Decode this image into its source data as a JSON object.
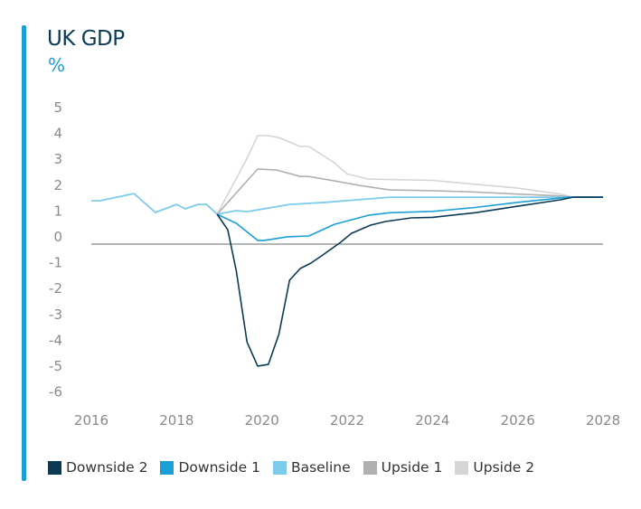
{
  "title": "UK GDP",
  "unit": "%",
  "chart_data": {
    "type": "line",
    "title": "UK GDP",
    "ylabel": "%",
    "xlim": [
      2016,
      2028
    ],
    "ylim": [
      -6,
      5
    ],
    "x_ticks": [
      "2016",
      "2018",
      "2020",
      "2022",
      "2024",
      "2026",
      "2028"
    ],
    "y_ticks": [
      "5",
      "4",
      "3",
      "2",
      "1",
      "0",
      "-1",
      "-2",
      "-3",
      "-4",
      "-5",
      "-6"
    ],
    "grid": false,
    "legend": "bottom",
    "series": [
      {
        "name": "Downside 2",
        "color": "#0b3a55",
        "points": [
          [
            2018.95,
            0.84
          ],
          [
            2019.2,
            0.24
          ],
          [
            2019.4,
            -1.36
          ],
          [
            2019.65,
            -4.1
          ],
          [
            2019.9,
            -5.03
          ],
          [
            2020.15,
            -4.97
          ],
          [
            2020.4,
            -3.8
          ],
          [
            2020.65,
            -1.71
          ],
          [
            2020.9,
            -1.26
          ],
          [
            2021.15,
            -1.05
          ],
          [
            2021.4,
            -0.77
          ],
          [
            2021.85,
            -0.24
          ],
          [
            2022.1,
            0.1
          ],
          [
            2022.55,
            0.42
          ],
          [
            2022.9,
            0.56
          ],
          [
            2023.5,
            0.7
          ],
          [
            2024,
            0.72
          ],
          [
            2025,
            0.9
          ],
          [
            2026,
            1.15
          ],
          [
            2027,
            1.4
          ],
          [
            2027.3,
            1.5
          ],
          [
            2028,
            1.5
          ]
        ]
      },
      {
        "name": "Downside 1",
        "color": "#1a9fd6",
        "points": [
          [
            2018.95,
            0.84
          ],
          [
            2019.4,
            0.49
          ],
          [
            2019.9,
            -0.17
          ],
          [
            2020.05,
            -0.17
          ],
          [
            2020.6,
            -0.03
          ],
          [
            2021.1,
            0
          ],
          [
            2021.7,
            0.45
          ],
          [
            2022.5,
            0.8
          ],
          [
            2023,
            0.9
          ],
          [
            2024,
            0.95
          ],
          [
            2025,
            1.1
          ],
          [
            2026,
            1.3
          ],
          [
            2027.2,
            1.5
          ],
          [
            2028,
            1.5
          ]
        ]
      },
      {
        "name": "Baseline",
        "color": "#7ccbea",
        "points": [
          [
            2016,
            1.36
          ],
          [
            2016.2,
            1.36
          ],
          [
            2017,
            1.64
          ],
          [
            2017.5,
            0.91
          ],
          [
            2018,
            1.22
          ],
          [
            2018.2,
            1.05
          ],
          [
            2018.5,
            1.22
          ],
          [
            2018.7,
            1.22
          ],
          [
            2018.95,
            0.84
          ],
          [
            2019.4,
            0.98
          ],
          [
            2019.65,
            0.94
          ],
          [
            2020.15,
            1.08
          ],
          [
            2020.65,
            1.22
          ],
          [
            2021.5,
            1.3
          ],
          [
            2023,
            1.5
          ],
          [
            2028,
            1.5
          ]
        ]
      },
      {
        "name": "Upside 1",
        "color": "#b0b0b0",
        "points": [
          [
            2018.95,
            0.84
          ],
          [
            2019.65,
            2.13
          ],
          [
            2019.9,
            2.59
          ],
          [
            2020.35,
            2.55
          ],
          [
            2020.9,
            2.3
          ],
          [
            2021.1,
            2.3
          ],
          [
            2021.7,
            2.13
          ],
          [
            2022.3,
            1.95
          ],
          [
            2023,
            1.78
          ],
          [
            2024,
            1.75
          ],
          [
            2025,
            1.7
          ],
          [
            2026,
            1.62
          ],
          [
            2027,
            1.55
          ],
          [
            2027.3,
            1.5
          ],
          [
            2028,
            1.5
          ]
        ]
      },
      {
        "name": "Upside 2",
        "color": "#d5d5d5",
        "points": [
          [
            2018.95,
            0.84
          ],
          [
            2019.65,
            3.0
          ],
          [
            2019.9,
            3.88
          ],
          [
            2020.15,
            3.88
          ],
          [
            2020.4,
            3.8
          ],
          [
            2020.9,
            3.46
          ],
          [
            2021.1,
            3.46
          ],
          [
            2021.7,
            2.83
          ],
          [
            2022,
            2.4
          ],
          [
            2022.5,
            2.2
          ],
          [
            2024,
            2.15
          ],
          [
            2025,
            2.0
          ],
          [
            2026,
            1.85
          ],
          [
            2027,
            1.62
          ],
          [
            2027.3,
            1.5
          ],
          [
            2028,
            1.5
          ]
        ]
      }
    ]
  }
}
